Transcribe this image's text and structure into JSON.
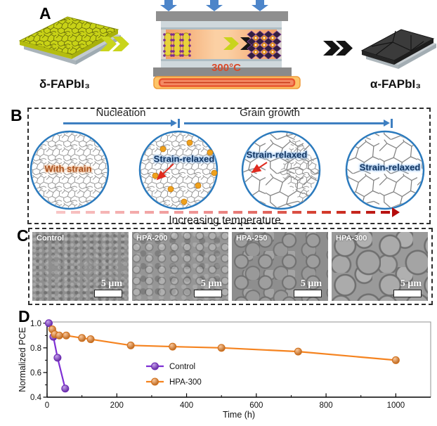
{
  "panelA": {
    "label": "A",
    "delta_phase_label": "δ-FAPbI₃",
    "alpha_phase_label": "α-FAPbI₃",
    "press_temperature": "300°C",
    "colors": {
      "delta_film": "#c8d216",
      "alpha_film": "#3b3b3b",
      "press_arrows": "#4d85c9",
      "temperature_text": "#d84a2a",
      "chamber": "#f5a368"
    }
  },
  "panelB": {
    "label": "B",
    "stage_labels": {
      "nucleation": "Nucleation",
      "grain_growth": "Grain growth"
    },
    "circle_labels": [
      "With strain",
      "Strain-relaxed",
      "Strain-relaxed",
      "Strain-relaxed"
    ],
    "temperature_axis_label": "Increasing temperature",
    "colors": {
      "stage_arrow": "#3e7fc1",
      "circle_border": "#2b7abd",
      "with_strain_text": "#a8511f",
      "strain_relaxed_text": "#14355f",
      "nuclei_dots": "#efa11c",
      "temp_arrow_end": "#b50d0d"
    }
  },
  "panelC": {
    "label": "C",
    "images": [
      {
        "name": "Control",
        "scale_bar": "5 μm"
      },
      {
        "name": "HPA-200",
        "scale_bar": "5 μm"
      },
      {
        "name": "HPA-250",
        "scale_bar": "5 μm"
      },
      {
        "name": "HPA-300",
        "scale_bar": "5 μm"
      }
    ]
  },
  "panelD": {
    "label": "D"
  },
  "chart_data": {
    "type": "line",
    "title": "",
    "xlabel": "Time (h)",
    "ylabel": "Normalized PCE",
    "xlim": [
      0,
      1100
    ],
    "ylim": [
      0.4,
      1.01
    ],
    "xticks": [
      0,
      200,
      400,
      600,
      800,
      1000
    ],
    "xticks_minor": [
      100,
      300,
      500,
      700,
      900
    ],
    "yticks": [
      0.4,
      0.6,
      0.8,
      1.0
    ],
    "yticks_minor": [
      0.5,
      0.7,
      0.9
    ],
    "grid": false,
    "legend_position": "inside-center-right",
    "series": [
      {
        "name": "Control",
        "color": "#7e2fd4",
        "x": [
          5,
          18,
          30,
          52
        ],
        "y": [
          1.0,
          0.89,
          0.72,
          0.47
        ]
      },
      {
        "name": "HPA-300",
        "color": "#f5831f",
        "x": [
          15,
          22,
          35,
          55,
          100,
          125,
          240,
          360,
          500,
          720,
          1000
        ],
        "y": [
          0.95,
          0.91,
          0.9,
          0.9,
          0.88,
          0.87,
          0.82,
          0.81,
          0.8,
          0.77,
          0.7
        ]
      }
    ]
  }
}
